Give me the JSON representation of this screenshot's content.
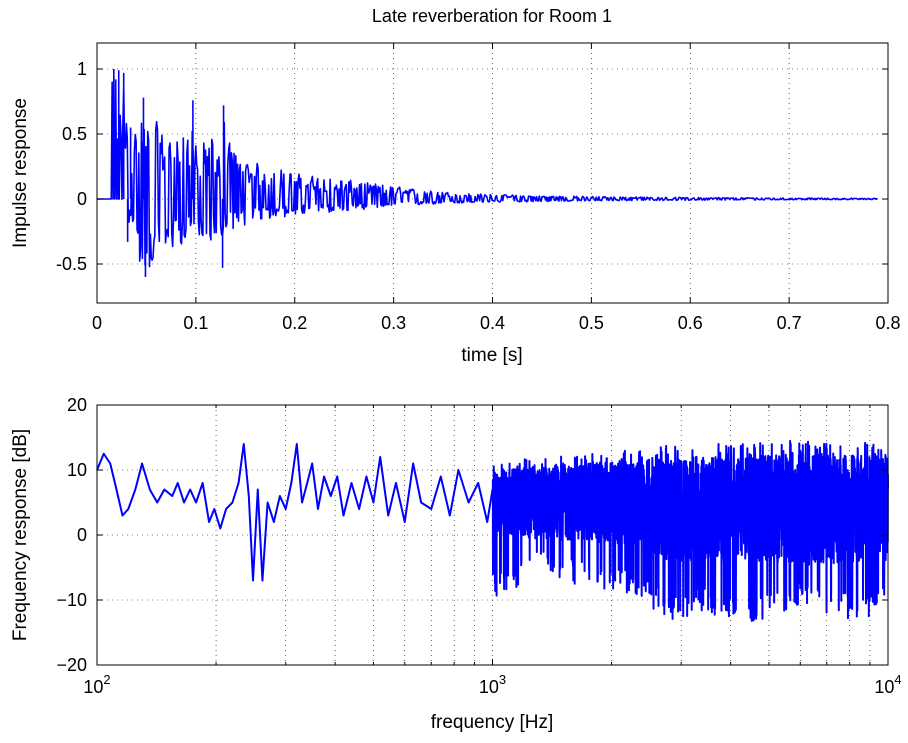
{
  "chart_data": [
    {
      "type": "line",
      "title": "Late reverberation for Room 1",
      "xlabel": "time [s]",
      "ylabel": "Impulse response",
      "xlim": [
        0,
        0.8
      ],
      "ylim": [
        -0.8,
        1.2
      ],
      "xticks": [
        "0",
        "0.1",
        "0.2",
        "0.3",
        "0.4",
        "0.5",
        "0.6",
        "0.7",
        "0.8"
      ],
      "yticks": [
        "-0.5",
        "0",
        "0.5",
        "1"
      ],
      "x_scale": "linear",
      "grid": true,
      "series_color": "#0000ff",
      "signal_end_time": 0.79,
      "x": [
        0.0,
        0.005,
        0.01,
        0.015,
        0.02,
        0.025,
        0.03,
        0.035,
        0.04,
        0.045,
        0.05,
        0.055,
        0.06,
        0.065,
        0.07,
        0.075,
        0.08,
        0.085,
        0.09,
        0.095,
        0.1,
        0.105,
        0.11,
        0.115,
        0.12,
        0.125,
        0.13,
        0.14,
        0.15,
        0.16,
        0.17,
        0.18,
        0.19,
        0.2,
        0.22,
        0.24,
        0.26,
        0.28,
        0.3,
        0.32,
        0.34,
        0.36,
        0.38,
        0.4,
        0.45,
        0.5,
        0.55,
        0.6,
        0.65,
        0.7,
        0.75,
        0.79
      ],
      "env_pos": [
        0,
        0,
        0,
        1.0,
        1.0,
        0.98,
        0.95,
        0.55,
        0.55,
        0.78,
        0.58,
        0.54,
        0.6,
        0.52,
        0.5,
        0.48,
        0.55,
        0.5,
        0.45,
        0.78,
        0.42,
        0.48,
        0.4,
        0.5,
        0.38,
        0.36,
        0.72,
        0.35,
        0.3,
        0.28,
        0.26,
        0.25,
        0.22,
        0.2,
        0.18,
        0.16,
        0.14,
        0.12,
        0.1,
        0.08,
        0.06,
        0.05,
        0.04,
        0.035,
        0.025,
        0.02,
        0.015,
        0.012,
        0.01,
        0.008,
        0.006,
        0.005
      ],
      "env_neg": [
        0,
        0,
        0,
        0,
        0,
        0,
        -0.05,
        -0.33,
        -0.3,
        -0.6,
        -0.58,
        -0.52,
        -0.5,
        -0.45,
        -0.42,
        -0.4,
        -0.38,
        -0.35,
        -0.33,
        -0.3,
        -0.3,
        -0.28,
        -0.3,
        -0.36,
        -0.25,
        -0.53,
        -0.25,
        -0.22,
        -0.2,
        -0.18,
        -0.16,
        -0.15,
        -0.14,
        -0.13,
        -0.11,
        -0.1,
        -0.09,
        -0.07,
        -0.06,
        -0.05,
        -0.04,
        -0.035,
        -0.03,
        -0.025,
        -0.02,
        -0.015,
        -0.012,
        -0.01,
        -0.008,
        -0.006,
        -0.005,
        -0.004
      ]
    },
    {
      "type": "line",
      "title": "",
      "xlabel": "frequency [Hz]",
      "ylabel": "Frequency response [dB]",
      "xlim": [
        100,
        10000
      ],
      "ylim": [
        -20,
        20
      ],
      "x_scale": "log",
      "xticks": [
        {
          "base": "10",
          "exp": "2"
        },
        {
          "base": "10",
          "exp": "3"
        },
        {
          "base": "10",
          "exp": "4"
        }
      ],
      "yticks": [
        "−20",
        "−10",
        "0",
        "10",
        "20"
      ],
      "grid": true,
      "series_color": "#0000ff",
      "x": [
        100,
        104,
        108,
        112,
        116,
        120,
        125,
        130,
        136,
        142,
        148,
        155,
        160,
        166,
        172,
        178,
        185,
        192,
        198,
        205,
        212,
        220,
        228,
        235,
        242,
        248,
        255,
        262,
        270,
        280,
        290,
        300,
        310,
        320,
        330,
        340,
        350,
        362,
        375,
        390,
        405,
        420,
        440,
        460,
        480,
        500,
        520,
        545,
        570,
        600,
        630,
        660,
        700,
        740,
        780,
        820,
        870,
        920,
        970,
        1000
      ],
      "y": [
        10,
        12.5,
        11,
        7,
        3,
        4,
        7,
        11,
        7,
        5,
        7,
        6,
        8,
        5,
        7,
        5,
        8,
        2,
        4,
        1,
        4,
        5,
        8,
        14,
        6,
        -7,
        7,
        -7,
        5,
        2,
        6,
        4,
        8,
        14,
        5,
        8,
        11,
        4,
        9,
        6,
        9,
        3,
        8,
        4,
        9,
        5,
        12,
        3,
        8,
        2,
        11,
        5,
        4,
        9,
        3,
        10,
        5,
        8,
        2,
        7
      ],
      "env_x": [
        1000,
        1300,
        1700,
        2200,
        2800,
        3500,
        4500,
        6000,
        8000,
        10000
      ],
      "env_hi": [
        11,
        12,
        12.5,
        13,
        14,
        14,
        14,
        15,
        14.5,
        14
      ],
      "env_lo": [
        -10,
        -6,
        -8,
        -9,
        -13,
        -12,
        -14,
        -11,
        -13,
        -12
      ],
      "env_center": [
        5,
        5,
        5,
        5,
        4,
        4,
        4,
        4,
        4,
        4
      ]
    }
  ]
}
